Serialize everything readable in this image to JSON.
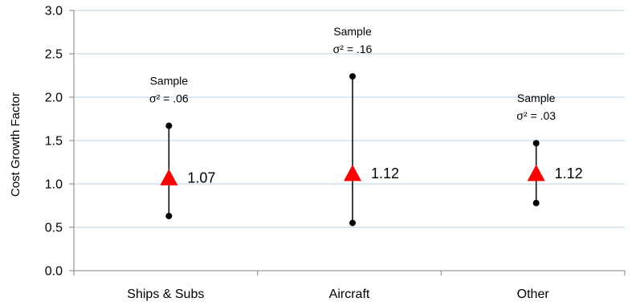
{
  "chart_data": {
    "type": "scatter",
    "title": "",
    "xlabel": "",
    "ylabel": "Cost Growth Factor",
    "ylim": [
      0,
      3
    ],
    "yticks": [
      "0.0",
      "0.5",
      "1.0",
      "1.5",
      "2.0",
      "2.5",
      "3.0"
    ],
    "ytick_values": [
      0,
      0.5,
      1.0,
      1.5,
      2.0,
      2.5,
      3.0
    ],
    "grid": "horizontal",
    "categories": [
      "Ships & Subs",
      "Aircraft",
      "Other"
    ],
    "means": [
      1.07,
      1.12,
      1.12
    ],
    "mean_labels": [
      "1.07",
      "1.12",
      "1.12"
    ],
    "ranges": [
      {
        "low": 0.63,
        "high": 1.67
      },
      {
        "low": 0.55,
        "high": 2.24
      },
      {
        "low": 0.78,
        "high": 1.47
      }
    ],
    "annotations": [
      {
        "line1": "Sample",
        "line2": "σ² = .06"
      },
      {
        "line1": "Sample",
        "line2": "σ² = .16"
      },
      {
        "line1": "Sample",
        "line2": "σ² = .03"
      }
    ],
    "colors": {
      "mean_marker": "#ff0000",
      "range": "#000000",
      "grid": "#bcd0e4",
      "axis": "#808080"
    }
  }
}
